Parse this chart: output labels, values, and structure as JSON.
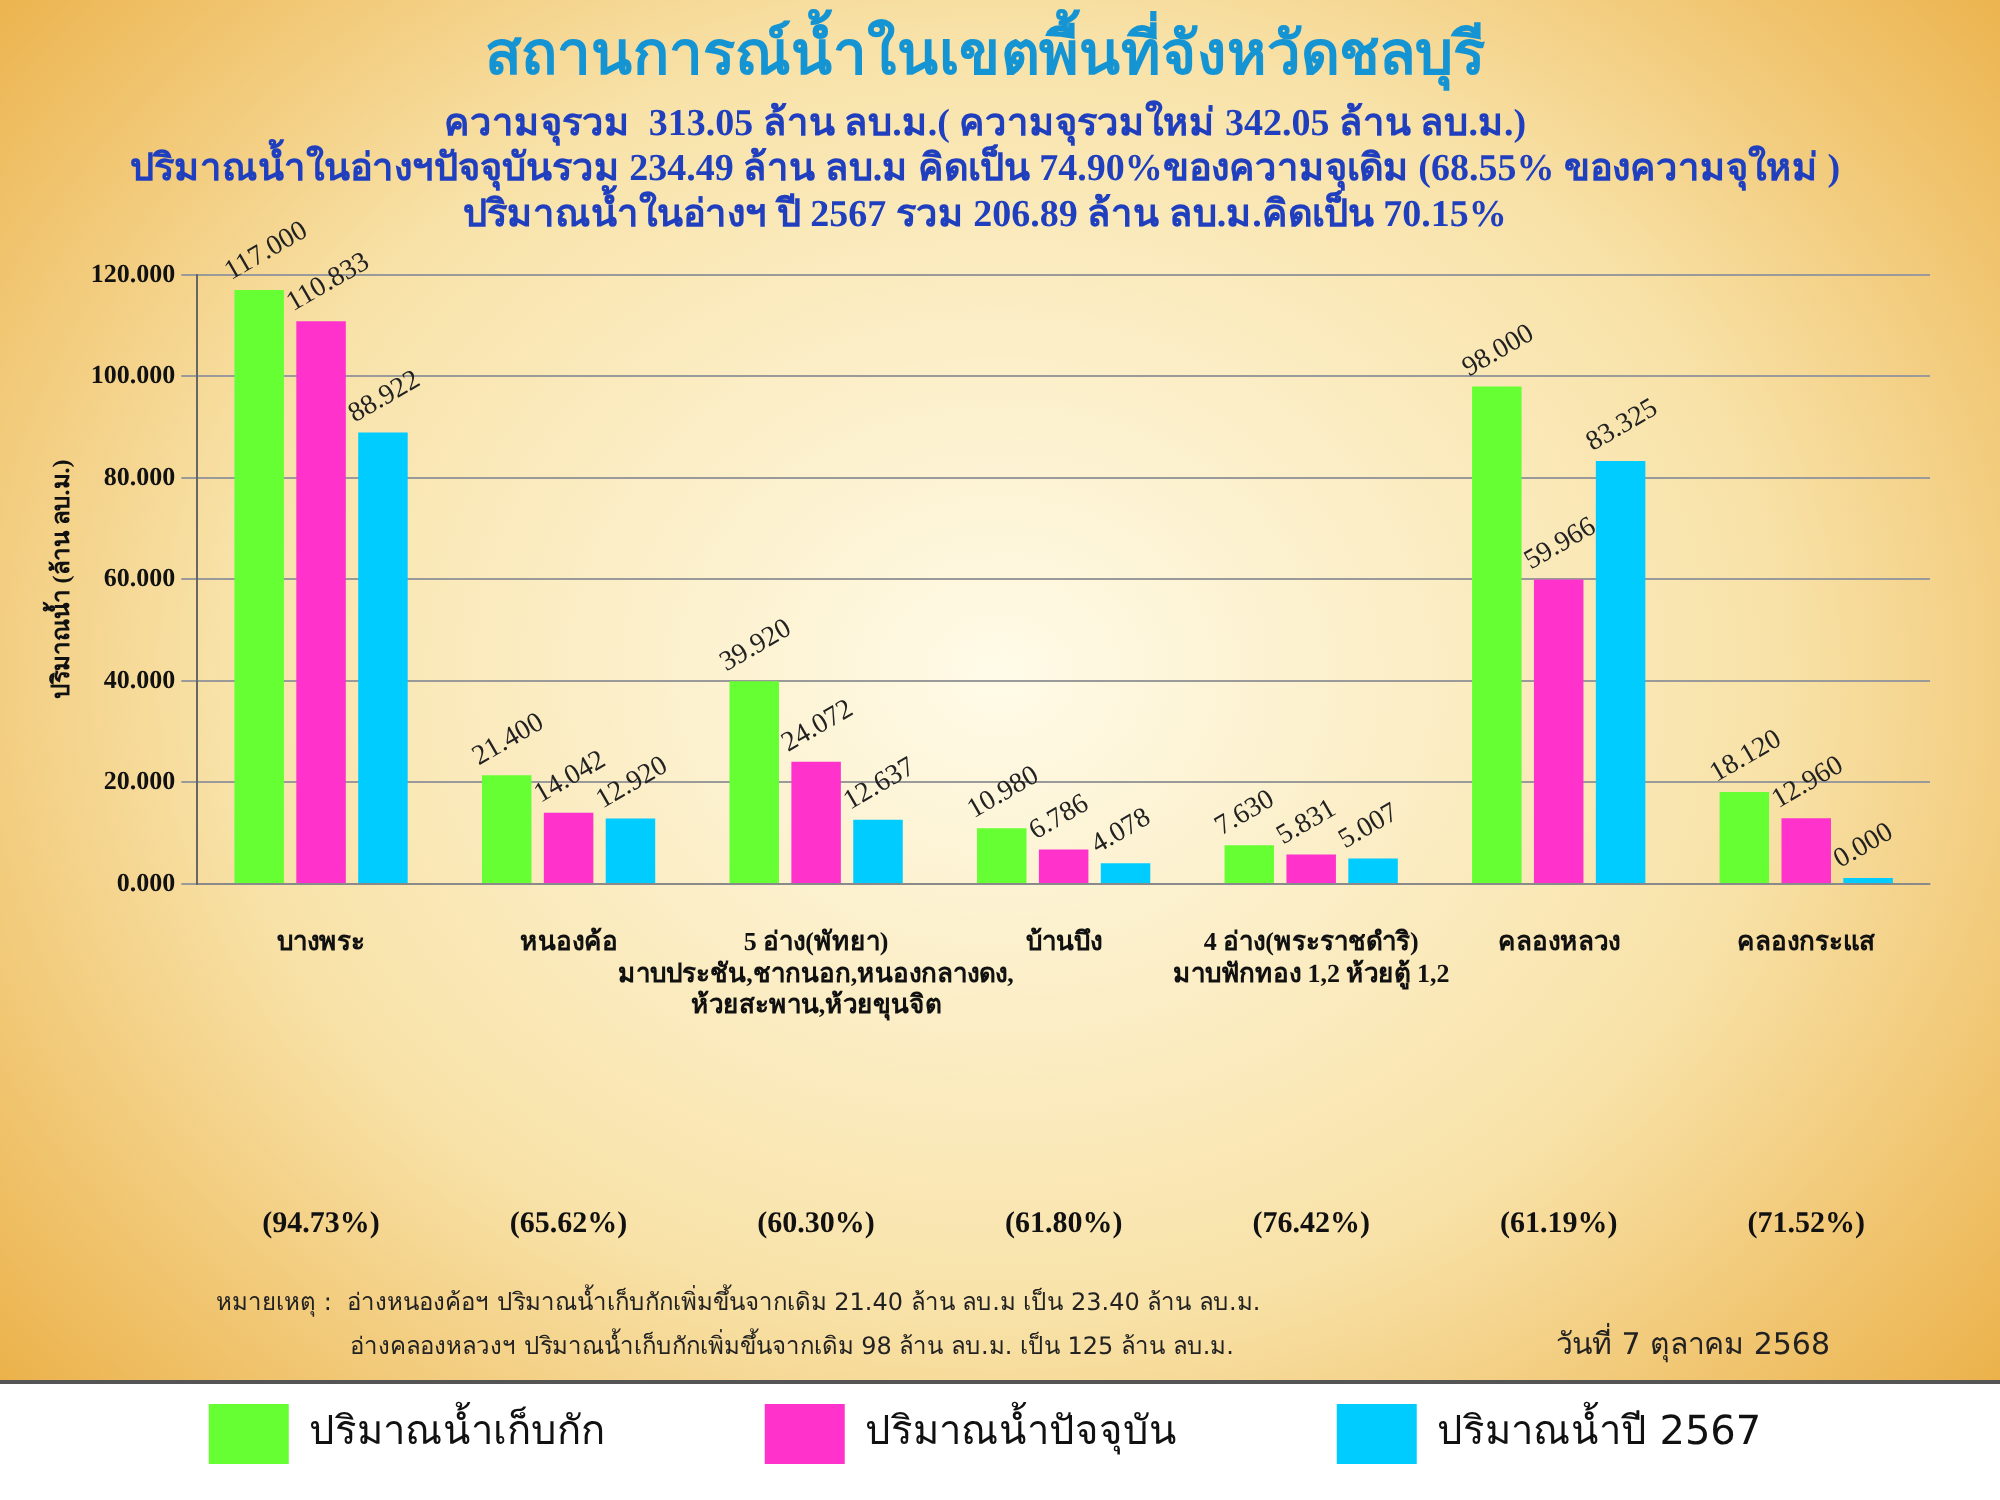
{
  "chart_data": {
    "type": "bar",
    "title": "สถานการณ์น้ำในเขตพื้นที่จังหวัดชลบุรี",
    "subtitle": "ความจุรวม  313.05 ล้าน ลบ.ม.( ความจุรวมใหม่ 342.05 ล้าน ลบ.ม.)\nปริมาณน้ำในอ่างฯปัจจุบันรวม 234.49 ล้าน ลบ.ม คิดเป็น 74.90%ของความจุเดิม (68.55% ของความจุใหม่ )\nปริมาณน้ำในอ่างฯ ปี 2567 รวม 206.89 ล้าน ลบ.ม.คิดเป็น 70.15%",
    "ylabel": "ปริมาณน้ำ (ล้าน ลบ.ม.)",
    "categories": [
      "บางพระ",
      "หนองค้อ",
      "5 อ่าง(พัทยา)\nมาบประชัน,ชากนอก,หนองกลางดง,\nห้วยสะพาน,ห้วยขุนจิต",
      "บ้านบึง",
      "4 อ่าง(พระราชดำริ)\nมาบฟักทอง 1,2 ห้วยตู้ 1,2",
      "คลองหลวง",
      "คลองกระแส"
    ],
    "series": [
      {
        "name": "ปริมาณน้ำเก็บกัก",
        "color": "#66ff33",
        "values": [
          117,
          21.4,
          39.92,
          10.98,
          7.63,
          98,
          18.12
        ],
        "value_labels": [
          "117.000",
          "21.400",
          "39.920",
          "10.980",
          "7.630",
          "98.000",
          "18.120"
        ]
      },
      {
        "name": "ปริมาณน้ำปัจจุบัน",
        "color": "#ff33cc",
        "values": [
          110.833,
          14.042,
          24.072,
          6.786,
          5.831,
          59.966,
          12.96
        ],
        "value_labels": [
          "110.833",
          "14.042",
          "24.072",
          "6.786",
          "5.831",
          "59.966",
          "12.960"
        ]
      },
      {
        "name": "ปริมาณน้ำปี 2567",
        "color": "#00ccff",
        "values": [
          88.922,
          12.92,
          12.637,
          4.078,
          5.007,
          83.325,
          0
        ],
        "value_labels": [
          "88.922",
          "12.920",
          "12.637",
          "4.078",
          "5.007",
          "83.325",
          "0.000"
        ]
      }
    ],
    "ylim": [
      0,
      120
    ],
    "yticks": [
      {
        "value": 0,
        "label": "0.000"
      },
      {
        "value": 20,
        "label": "20.000"
      },
      {
        "value": 40,
        "label": "40.000"
      },
      {
        "value": 60,
        "label": "60.000"
      },
      {
        "value": 80,
        "label": "80.000"
      },
      {
        "value": 100,
        "label": "100.000"
      },
      {
        "value": 120,
        "label": "120.000"
      }
    ],
    "grid": "y",
    "legend": "bottom",
    "annotations": [
      "(94.73%)",
      "(65.62%)",
      "(60.30%)",
      "(61.80%)",
      "(76.42%)",
      "(61.19%)",
      "(71.52%)",
      "หมายเหตุ :  อ่างหนองค้อฯ ปริมาณน้ำเก็บกักเพิ่มขึ้นจากเดิม 21.40 ล้าน ลบ.ม เป็น 23.40 ล้าน ลบ.ม.",
      "อ่างคลองหลวงฯ ปริมาณน้ำเก็บกักเพิ่มขึ้นจากเดิม 98 ล้าน ลบ.ม. เป็น 125 ล้าน ลบ.ม.",
      "วันที่ 7 ตุลาคม 2568"
    ]
  }
}
